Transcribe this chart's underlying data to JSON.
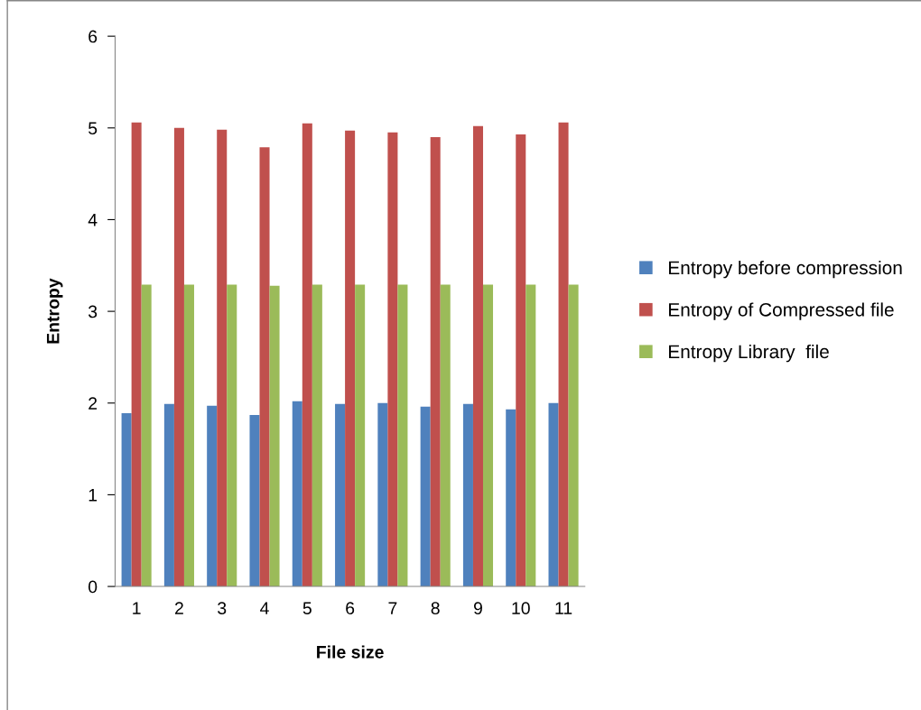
{
  "chart_data": {
    "type": "bar",
    "xlabel": "File size",
    "ylabel": "Entropy",
    "categories": [
      "1",
      "2",
      "3",
      "4",
      "5",
      "6",
      "7",
      "8",
      "9",
      "10",
      "11"
    ],
    "series": [
      {
        "name": "Entropy before compression",
        "color": "#4f81bd",
        "values": [
          1.89,
          1.99,
          1.97,
          1.87,
          2.02,
          1.99,
          2.0,
          1.96,
          1.99,
          1.93,
          2.0
        ]
      },
      {
        "name": "Entropy of Compressed file",
        "color": "#c0504d",
        "values": [
          5.06,
          5.0,
          4.98,
          4.79,
          5.05,
          4.97,
          4.95,
          4.9,
          5.02,
          4.93,
          5.06
        ]
      },
      {
        "name": "Entropy Library  file",
        "color": "#9bbb59",
        "values": [
          3.29,
          3.29,
          3.29,
          3.28,
          3.29,
          3.29,
          3.29,
          3.29,
          3.29,
          3.29,
          3.29
        ]
      }
    ],
    "ylim": [
      0,
      6
    ],
    "yticks": [
      0,
      1,
      2,
      3,
      4,
      5,
      6
    ],
    "grid": false,
    "legend": "right"
  }
}
